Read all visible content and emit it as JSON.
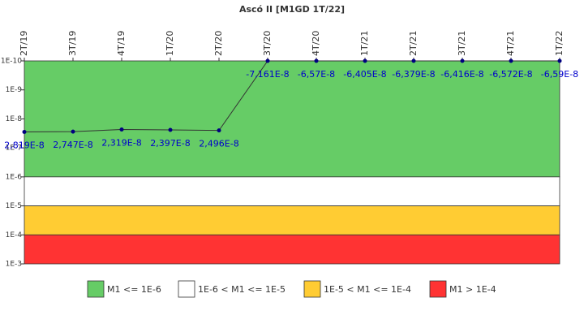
{
  "chart_data": {
    "type": "line",
    "title": "Ascó II [M1GD 1T/22]",
    "categories": [
      "2T/19",
      "3T/19",
      "4T/19",
      "1T/20",
      "2T/20",
      "3T/20",
      "4T/20",
      "1T/21",
      "2T/21",
      "3T/21",
      "4T/21",
      "1T/22"
    ],
    "series": [
      {
        "name": "M1GD",
        "color": "#333333",
        "marker_color": "#000080",
        "values": [
          2.819e-08,
          2.747e-08,
          2.319e-08,
          2.397e-08,
          2.496e-08,
          -7.161e-08,
          -6.57e-08,
          -6.405e-08,
          -6.379e-08,
          -6.416e-08,
          -6.572e-08,
          -6.59e-08
        ],
        "value_labels": [
          "2,819E-8",
          "2,747E-8",
          "2,319E-8",
          "2,397E-8",
          "2,496E-8",
          "-7,161E-8",
          "-6,57E-8",
          "-6,405E-8",
          "-6,379E-8",
          "-6,416E-8",
          "-6,572E-8",
          "-6,59E-8"
        ]
      }
    ],
    "ylim": [
      1e-10,
      0.001
    ],
    "log_scale": true,
    "inverted": true,
    "yticks": [
      {
        "value": 1e-10,
        "label": "1E-10"
      },
      {
        "value": 1e-09,
        "label": "1E-9"
      },
      {
        "value": 1e-08,
        "label": "1E-8"
      },
      {
        "value": 1e-07,
        "label": "1E-7"
      },
      {
        "value": 1e-06,
        "label": "1E-6"
      },
      {
        "value": 1e-05,
        "label": "1E-5"
      },
      {
        "value": 0.0001,
        "label": "1E-4"
      },
      {
        "value": 0.001,
        "label": "1E-3"
      }
    ],
    "bands": [
      {
        "name": "M1 <= 1E-6",
        "color": "#66cc66",
        "from": 1e-10,
        "to": 1e-06
      },
      {
        "name": "1E-6 < M1 <= 1E-5",
        "color": "#ffffff",
        "from": 1e-06,
        "to": 1e-05
      },
      {
        "name": "1E-5 < M1 <= 1E-4",
        "color": "#ffcc33",
        "from": 1e-05,
        "to": 0.0001
      },
      {
        "name": "M1 > 1E-4",
        "color": "#ff3333",
        "from": 0.0001,
        "to": 0.001
      }
    ]
  }
}
